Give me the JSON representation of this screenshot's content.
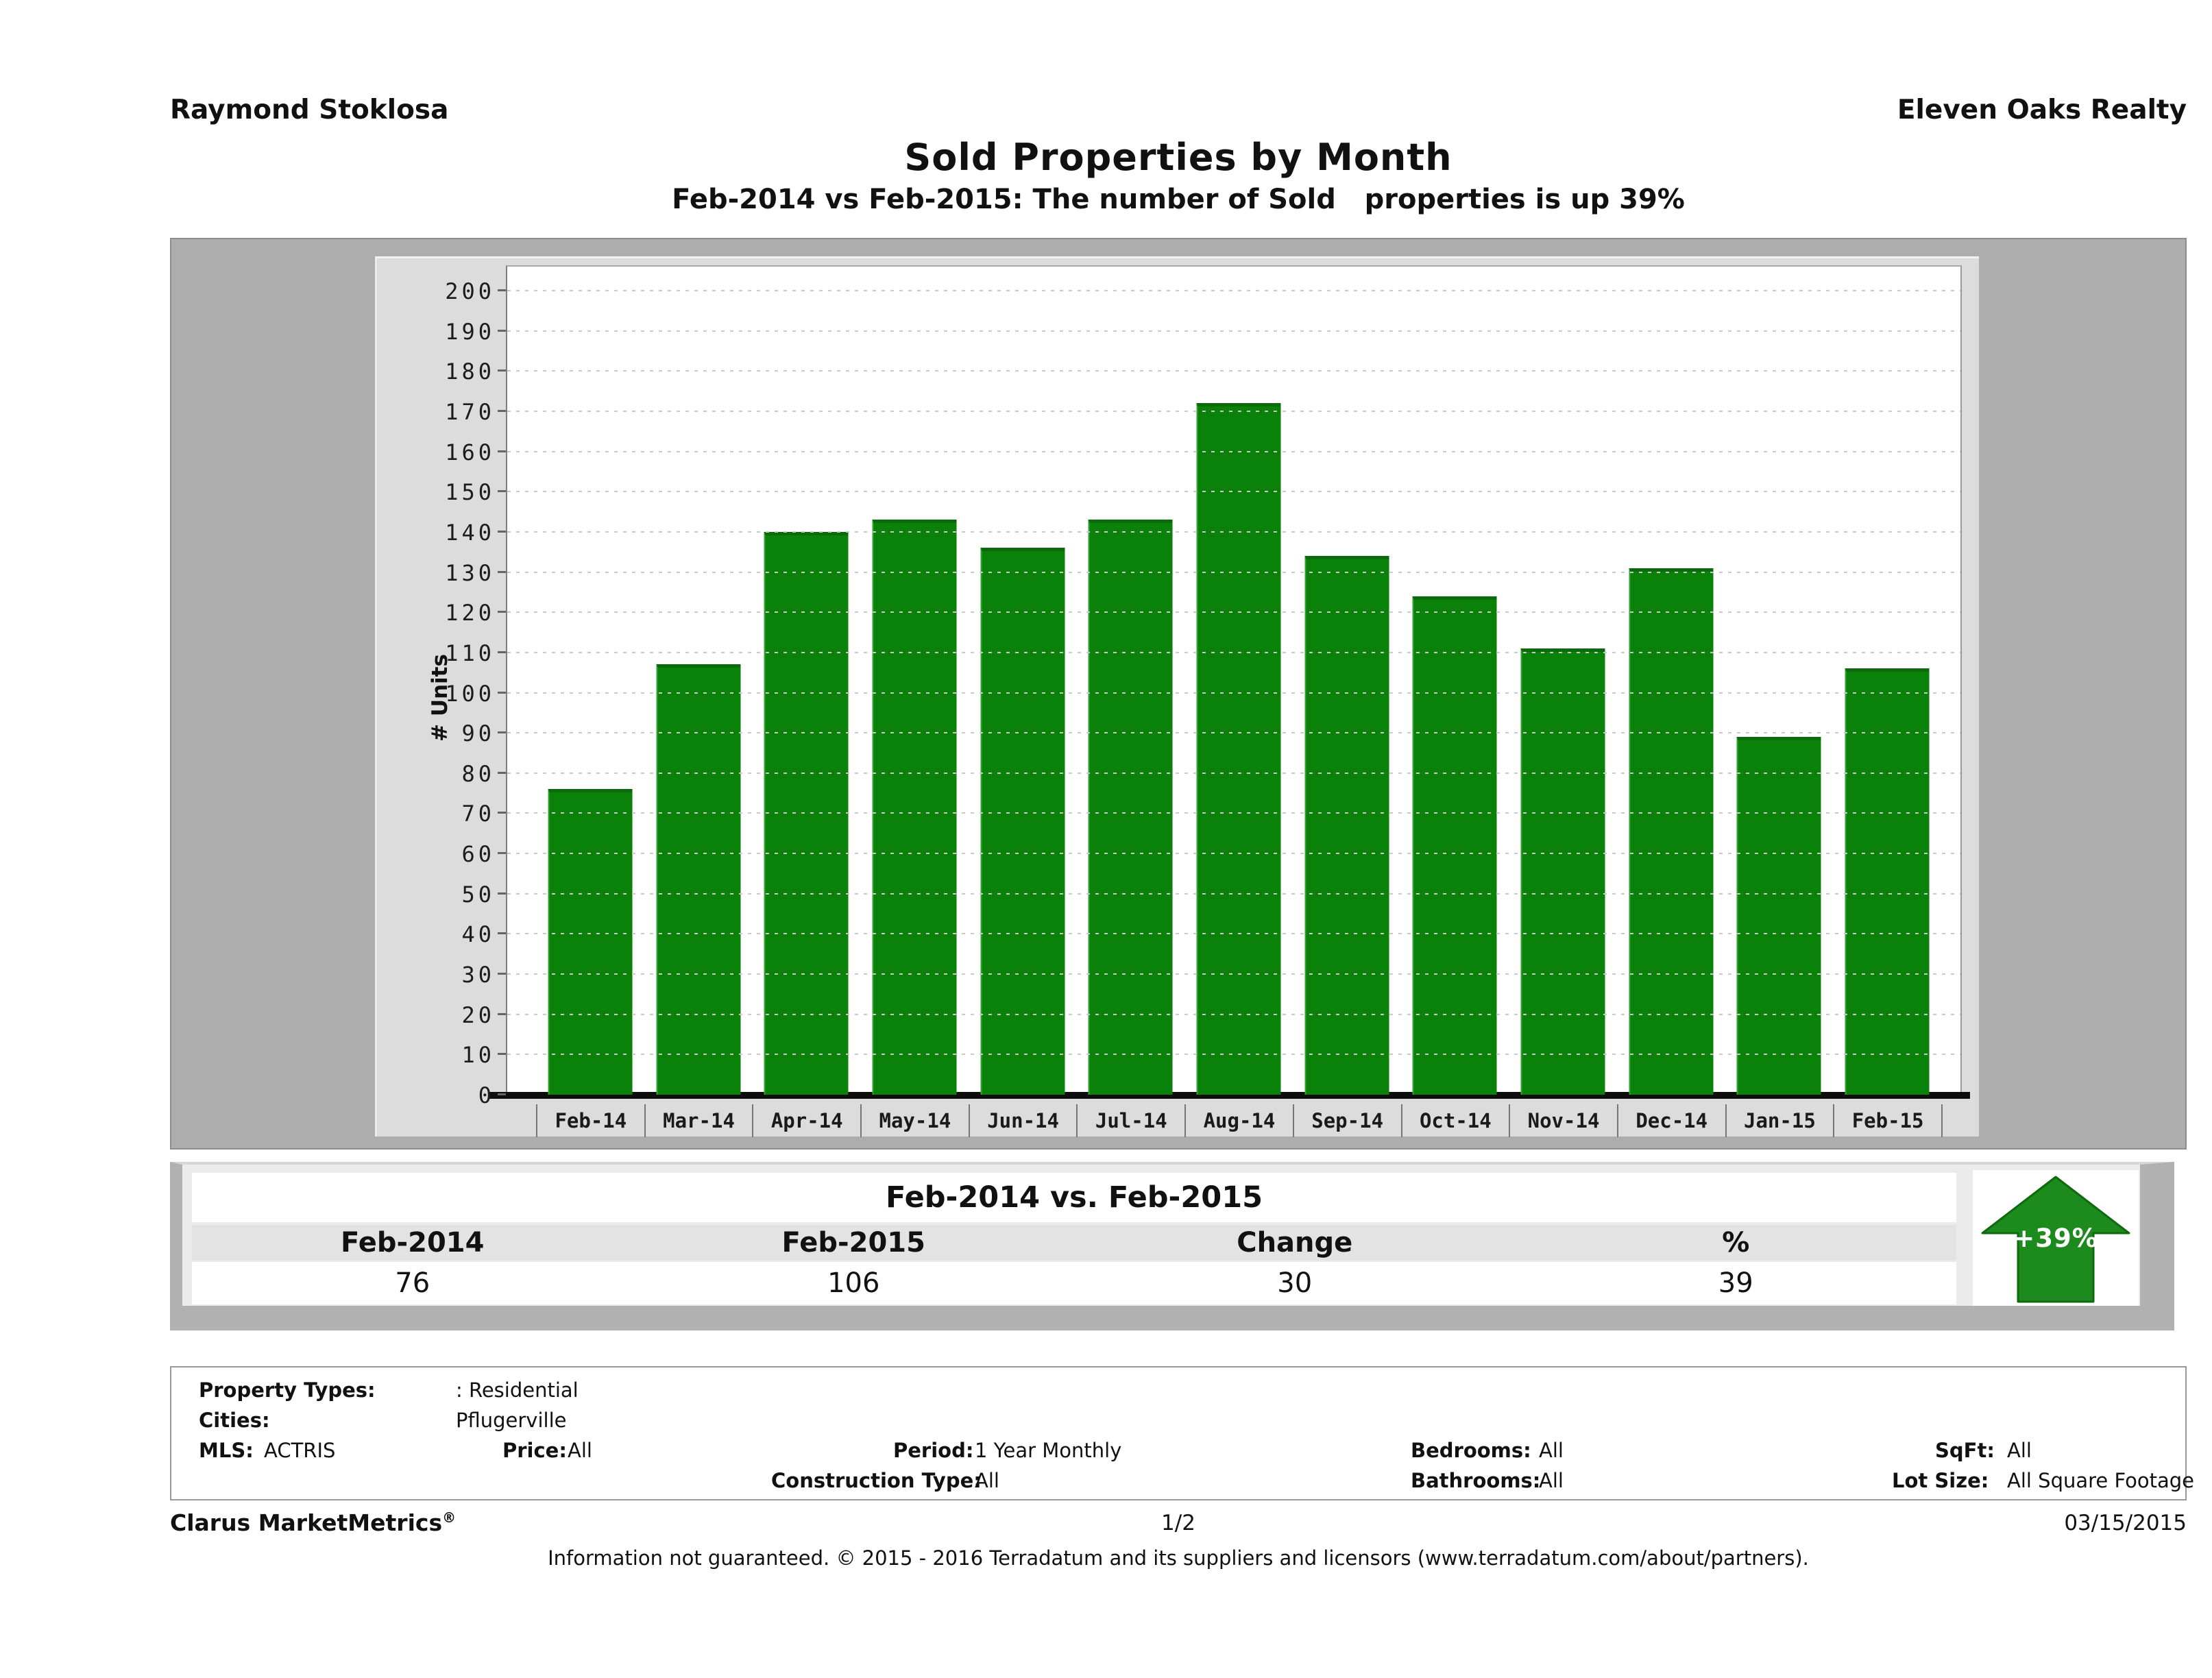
{
  "header": {
    "agent": "Raymond Stoklosa",
    "company": "Eleven Oaks Realty"
  },
  "title": "Sold Properties by Month",
  "subtitle": "Feb-2014 vs Feb-2015: The number of Sold   properties is up 39%",
  "chart_data": {
    "type": "bar",
    "title": "Sold Properties by Month",
    "categories": [
      "Feb-14",
      "Mar-14",
      "Apr-14",
      "May-14",
      "Jun-14",
      "Jul-14",
      "Aug-14",
      "Sep-14",
      "Oct-14",
      "Nov-14",
      "Dec-14",
      "Jan-15",
      "Feb-15"
    ],
    "values": [
      76,
      107,
      140,
      143,
      136,
      143,
      172,
      134,
      124,
      111,
      131,
      89,
      106
    ],
    "xlabel": "",
    "ylabel": "# Units",
    "ylim": [
      0,
      200
    ],
    "ytick_step": 10,
    "grid": "horizontal-dotted",
    "legend": "none",
    "bar_color": "#0a820a"
  },
  "summary_table": {
    "title": "Feb-2014 vs. Feb-2015",
    "columns": [
      "Feb-2014",
      "Feb-2015",
      "Change",
      "%"
    ],
    "values": [
      "76",
      "106",
      "30",
      "39"
    ],
    "badge": {
      "label": "+39%",
      "direction": "up",
      "color": "#1c8a1c"
    }
  },
  "filters": {
    "property_types_label": "Property Types:",
    "property_types": ": Residential",
    "cities_label": "Cities:",
    "cities": "Pflugerville",
    "mls_label": "MLS:",
    "mls": "ACTRIS",
    "price_label": "Price:",
    "price": "All",
    "period_label": "Period:",
    "period": "1 Year Monthly",
    "bedrooms_label": "Bedrooms:",
    "bedrooms": "All",
    "sqft_label": "SqFt:",
    "sqft": "All",
    "construction_label": "Construction Type:",
    "construction": "All",
    "bathrooms_label": "Bathrooms:",
    "bathrooms": "All",
    "lot_size_label": "Lot Size:",
    "lot_size": "All Square Footage"
  },
  "footer": {
    "brand": "Clarus MarketMetrics",
    "brand_reg": "®",
    "page": "1/2",
    "date": "03/15/2015",
    "disclaimer": "Information not guaranteed. © 2015 - 2016 Terradatum and its suppliers and licensors (www.terradatum.com/about/partners)."
  }
}
